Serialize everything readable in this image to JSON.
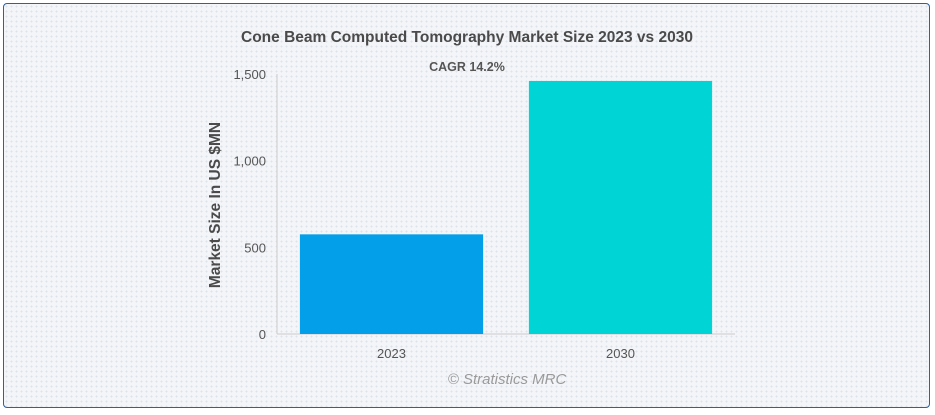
{
  "chart_data": {
    "type": "bar",
    "title": "Cone Beam Computed Tomography Market Size 2023 vs 2030",
    "subtitle": "CAGR 14.2%",
    "ylabel": "Market Size In US $MN",
    "xlabel": "",
    "categories": [
      "2023",
      "2030"
    ],
    "values": [
      575,
      1460
    ],
    "ylim": [
      0,
      1500
    ],
    "yticks": [
      0,
      500,
      1000,
      1500
    ],
    "ytick_labels": [
      "0",
      "500",
      "1,000",
      "1,500"
    ],
    "colors": [
      "#049fe9",
      "#00d4d4"
    ],
    "grid": false,
    "legend": "none"
  },
  "credit": "© Stratistics MRC"
}
